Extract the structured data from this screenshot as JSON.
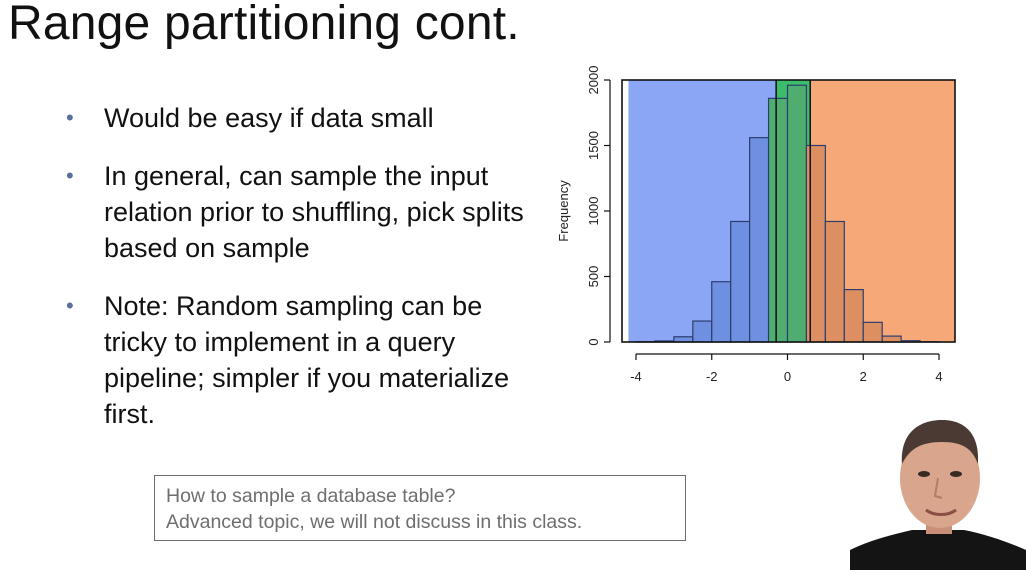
{
  "slide": {
    "title": "Range partitioning cont.",
    "bullets": [
      "Would be easy if data small",
      "In general, can sample the input relation prior to shuffling, pick splits based on sample",
      "Note: Random sampling can be tricky to implement in a query pipeline; simpler if you materialize first."
    ],
    "note_lines": [
      "How to sample a database table?",
      "Advanced topic, we will not discuss in this class."
    ]
  },
  "chart_data": {
    "type": "bar",
    "title": "",
    "xlabel": "",
    "ylabel": "Frequency",
    "bin_edges": [
      -4,
      -3.5,
      -3,
      -2.5,
      -2,
      -1.5,
      -1,
      -0.5,
      0,
      0.5,
      1,
      1.5,
      2,
      2.5,
      3,
      3.5,
      4
    ],
    "values": [
      2,
      8,
      40,
      160,
      460,
      920,
      1560,
      1860,
      1960,
      1500,
      920,
      400,
      150,
      45,
      10,
      2
    ],
    "xlim": [
      -4,
      4
    ],
    "ylim": [
      0,
      2000
    ],
    "xticks": [
      "-4",
      "-2",
      "0",
      "2",
      "4"
    ],
    "yticks": [
      "0",
      "500",
      "1000",
      "1500",
      "2000"
    ],
    "partitions": [
      {
        "from": -4.2,
        "to": -0.3,
        "color": "#8aa6f5"
      },
      {
        "from": -0.3,
        "to": 0.6,
        "color": "#3dbd6b"
      },
      {
        "from": 0.6,
        "to": 4.5,
        "color": "#f7a878"
      }
    ],
    "bar_colors": {
      "blue": "#6f8fe0",
      "green": "#4fae6f",
      "orange": "#dd8f62"
    },
    "grid": false,
    "legend": "none"
  }
}
